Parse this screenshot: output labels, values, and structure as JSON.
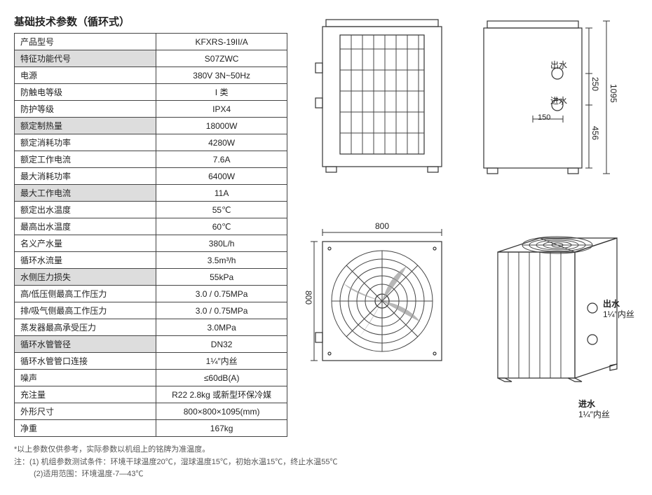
{
  "title": "基础技术参数（循环式）",
  "rows": [
    {
      "label": "产品型号",
      "value": "KFXRS-19II/A",
      "shaded": false
    },
    {
      "label": "特征功能代号",
      "value": "S07ZWC",
      "shaded": true
    },
    {
      "label": "电源",
      "value": "380V 3N~50Hz",
      "shaded": false
    },
    {
      "label": "防触电等级",
      "value": "I 类",
      "shaded": false
    },
    {
      "label": "防护等级",
      "value": "IPX4",
      "shaded": false
    },
    {
      "label": "额定制热量",
      "value": "18000W",
      "shaded": true
    },
    {
      "label": "额定消耗功率",
      "value": "4280W",
      "shaded": false
    },
    {
      "label": "额定工作电流",
      "value": "7.6A",
      "shaded": false
    },
    {
      "label": "最大消耗功率",
      "value": "6400W",
      "shaded": false
    },
    {
      "label": "最大工作电流",
      "value": "11A",
      "shaded": true
    },
    {
      "label": "额定出水温度",
      "value": "55℃",
      "shaded": false
    },
    {
      "label": "最高出水温度",
      "value": "60℃",
      "shaded": false
    },
    {
      "label": "名义产水量",
      "value": "380L/h",
      "shaded": false
    },
    {
      "label": "循环水流量",
      "value": "3.5m³/h",
      "shaded": false
    },
    {
      "label": "水侧压力损失",
      "value": "55kPa",
      "shaded": true
    },
    {
      "label": "高/低压侧最高工作压力",
      "value": "3.0 / 0.75MPa",
      "shaded": false
    },
    {
      "label": "排/吸气侧最高工作压力",
      "value": "3.0 / 0.75MPa",
      "shaded": false
    },
    {
      "label": "蒸发器最高承受压力",
      "value": "3.0MPa",
      "shaded": false
    },
    {
      "label": "循环水管管径",
      "value": "DN32",
      "shaded": true
    },
    {
      "label": "循环水管管口连接",
      "value": "1¼″内丝",
      "shaded": false
    },
    {
      "label": "噪声",
      "value": "≤60dB(A)",
      "shaded": false
    },
    {
      "label": "充注量",
      "value": "R22 2.8kg 或新型环保冷媒",
      "shaded": false
    },
    {
      "label": "外形尺寸",
      "value": "800×800×1095(mm)",
      "shaded": false
    },
    {
      "label": "净重",
      "value": "167kg",
      "shaded": false
    }
  ],
  "footnote0": "*以上参数仅供参考，实际参数以机组上的铭牌为准温度。",
  "footnote1": "注：(1) 机组参数测试条件：环境干球温度20℃，湿球温度15℃，初始水温15℃，终止水温55℃",
  "footnote2": "(2)适用范围：环境温度-7—43℃",
  "dims": {
    "w800a": "800",
    "h800": "800",
    "h1095": "1095",
    "h250": "250",
    "h456": "456",
    "d150": "150"
  },
  "labels": {
    "outlet": "出水",
    "inlet": "进水",
    "thread": "1¼″内丝"
  }
}
